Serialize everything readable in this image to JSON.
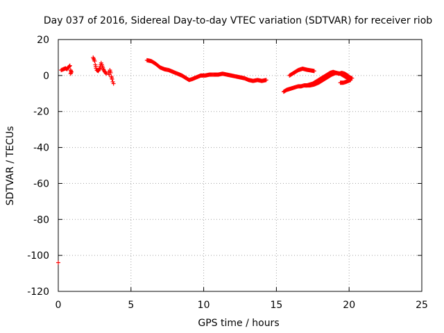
{
  "chart_data": {
    "type": "scatter",
    "title": "Day 037 of 2016, Sidereal Day-to-day VTEC variation (SDTVAR) for receiver riob",
    "xlabel": "GPS time / hours",
    "ylabel": "SDTVAR / TECUs",
    "xlim": [
      0,
      25
    ],
    "ylim": [
      -120,
      20
    ],
    "xticks": [
      0,
      5,
      10,
      15,
      20,
      25
    ],
    "yticks": [
      -120,
      -100,
      -80,
      -60,
      -40,
      -20,
      0,
      20
    ],
    "grid": true,
    "marker": "+",
    "color": "#ff0000",
    "series": [
      {
        "name": "SDTVAR",
        "segments": [
          {
            "points": [
              [
                0.0,
                -104
              ]
            ]
          },
          {
            "points": [
              [
                0.2,
                3
              ],
              [
                0.35,
                3.5
              ],
              [
                0.5,
                4
              ],
              [
                0.6,
                3.5
              ],
              [
                0.7,
                4.5
              ],
              [
                0.8,
                5.5
              ],
              [
                0.85,
                3
              ],
              [
                0.9,
                2
              ],
              [
                0.85,
                1
              ]
            ]
          },
          {
            "points": [
              [
                2.4,
                10
              ],
              [
                2.5,
                8
              ],
              [
                2.55,
                6
              ],
              [
                2.6,
                4
              ],
              [
                2.65,
                3
              ],
              [
                2.75,
                2.5
              ],
              [
                2.85,
                4
              ],
              [
                2.95,
                7
              ],
              [
                3.0,
                6
              ],
              [
                3.1,
                3.5
              ],
              [
                3.2,
                2
              ],
              [
                3.3,
                1
              ]
            ]
          },
          {
            "points": [
              [
                3.45,
                2
              ],
              [
                3.5,
                0.5
              ],
              [
                3.55,
                3
              ],
              [
                3.6,
                1.5
              ],
              [
                3.65,
                -0.5
              ],
              [
                3.7,
                -2
              ],
              [
                3.75,
                -3.5
              ],
              [
                3.8,
                -4.5
              ]
            ]
          },
          {
            "points": [
              [
                6.1,
                8.5
              ],
              [
                6.4,
                8
              ],
              [
                6.7,
                6.5
              ],
              [
                7.0,
                4.5
              ],
              [
                7.3,
                3.5
              ],
              [
                7.6,
                3
              ],
              [
                7.9,
                2
              ],
              [
                8.2,
                1
              ],
              [
                8.5,
                0
              ],
              [
                8.8,
                -1.5
              ],
              [
                9.0,
                -2.5
              ],
              [
                9.2,
                -2
              ],
              [
                9.5,
                -1
              ],
              [
                9.8,
                0
              ],
              [
                10.1,
                0
              ],
              [
                10.4,
                0.5
              ],
              [
                10.7,
                0.5
              ],
              [
                11.0,
                0.5
              ],
              [
                11.3,
                1
              ],
              [
                11.6,
                0.5
              ],
              [
                11.9,
                0
              ],
              [
                12.2,
                -0.5
              ],
              [
                12.5,
                -1
              ],
              [
                12.8,
                -1.5
              ],
              [
                13.1,
                -2.5
              ],
              [
                13.4,
                -3
              ],
              [
                13.7,
                -2.5
              ],
              [
                14.0,
                -3
              ],
              [
                14.3,
                -2.5
              ]
            ]
          },
          {
            "points": [
              [
                15.5,
                -9
              ],
              [
                15.7,
                -8
              ],
              [
                15.9,
                -7.5
              ],
              [
                16.1,
                -7
              ],
              [
                16.3,
                -6.5
              ],
              [
                16.5,
                -6
              ],
              [
                16.7,
                -6
              ],
              [
                16.9,
                -5.5
              ],
              [
                17.1,
                -5.5
              ],
              [
                17.3,
                -5
              ],
              [
                17.5,
                -4.5
              ],
              [
                17.7,
                -3.5
              ],
              [
                17.9,
                -2.5
              ],
              [
                18.1,
                -1.5
              ],
              [
                18.3,
                -0.5
              ],
              [
                18.5,
                0.5
              ],
              [
                18.7,
                1.5
              ],
              [
                18.9,
                2
              ],
              [
                19.1,
                1.5
              ],
              [
                19.3,
                1
              ],
              [
                19.5,
                1.5
              ],
              [
                19.7,
                1
              ],
              [
                19.9,
                0
              ],
              [
                20.05,
                -1
              ],
              [
                20.2,
                -1.5
              ]
            ]
          },
          {
            "points": [
              [
                15.9,
                0
              ],
              [
                16.2,
                1.5
              ],
              [
                16.5,
                3
              ],
              [
                16.8,
                3.8
              ],
              [
                17.1,
                3.2
              ],
              [
                17.4,
                2.8
              ],
              [
                17.6,
                2.5
              ]
            ]
          },
          {
            "points": [
              [
                17.0,
                -5.5
              ],
              [
                17.3,
                -5.5
              ],
              [
                17.6,
                -5
              ],
              [
                17.9,
                -4
              ],
              [
                18.2,
                -2.5
              ],
              [
                18.5,
                -1
              ],
              [
                18.8,
                0.5
              ],
              [
                19.1,
                1.5
              ],
              [
                19.4,
                1
              ],
              [
                19.6,
                0
              ],
              [
                19.8,
                -1
              ],
              [
                20.0,
                -2
              ],
              [
                20.1,
                -2.5
              ],
              [
                19.95,
                -3
              ],
              [
                19.8,
                -3.5
              ],
              [
                19.6,
                -4
              ],
              [
                19.4,
                -4
              ]
            ]
          }
        ]
      }
    ]
  }
}
